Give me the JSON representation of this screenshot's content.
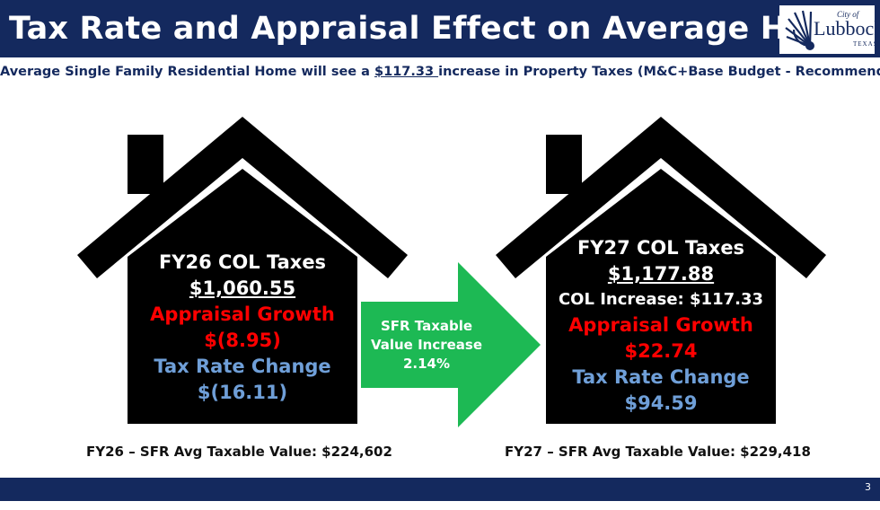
{
  "header": {
    "title": "Tax Rate and Appraisal Effect on Average Home",
    "logo": {
      "city_of": "City of",
      "name": "Lubbock",
      "state": "TEXAS",
      "icon": "sun-rays-icon"
    }
  },
  "subtitle": {
    "before": "Average Single Family Residential Home will see a ",
    "amount": "$117.33 ",
    "after": "increase in Property Taxes (M&C+Base Budget - Recommended)"
  },
  "fy26": {
    "heading": "FY26 COL Taxes",
    "total": "$1,060.55",
    "appraisal_label": "Appraisal Growth",
    "appraisal_value": "$(8.95)",
    "rate_label": "Tax Rate Change",
    "rate_value": "$(16.11)",
    "caption": "FY26 – SFR Avg Taxable Value: $224,602"
  },
  "arrow": {
    "line1": "SFR Taxable",
    "line2": "Value Increase",
    "line3": "2.14%"
  },
  "fy27": {
    "heading": "FY27 COL Taxes",
    "total": "$1,177.88",
    "increase": "COL Increase: $117.33",
    "appraisal_label": "Appraisal Growth",
    "appraisal_value": "$22.74",
    "rate_label": "Tax Rate Change",
    "rate_value": "$94.59",
    "caption": "FY27 – SFR Avg Taxable Value: $229,418"
  },
  "footer": {
    "page_number": "3"
  },
  "colors": {
    "navy": "#14295e",
    "house": "#000000",
    "arrow": "#1db954",
    "red": "#ff0000",
    "blue": "#6f9fd8"
  }
}
